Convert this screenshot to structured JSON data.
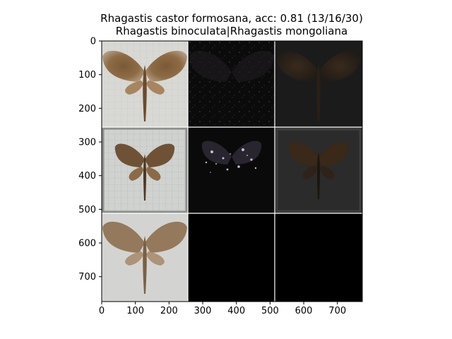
{
  "figure": {
    "title_line1": "Rhagastis castor formosana, acc: 0.81 (13/16/30)",
    "title_line2": "Rhagastis binoculata|Rhagastis mongoliana"
  },
  "axes": {
    "x_ticks": [
      "0",
      "100",
      "200",
      "300",
      "400",
      "500",
      "600",
      "700"
    ],
    "y_ticks": [
      "0",
      "100",
      "200",
      "300",
      "400",
      "500",
      "600",
      "700"
    ],
    "xlim": [
      0,
      774
    ],
    "ylim": [
      774,
      0
    ]
  },
  "grid": {
    "rows": 3,
    "cols": 3,
    "tiles": [
      [
        {
          "content": "moth specimen photo, pale background",
          "tone": "light"
        },
        {
          "content": "dark activation map",
          "tone": "dark"
        },
        {
          "content": "dark moth overlay",
          "tone": "dark"
        }
      ],
      [
        {
          "content": "moth specimen photo with grid backdrop",
          "tone": "light"
        },
        {
          "content": "sparse colored activation map",
          "tone": "dark"
        },
        {
          "content": "dark moth overlay",
          "tone": "dark"
        }
      ],
      [
        {
          "content": "blurred moth reconstruction",
          "tone": "light"
        },
        {
          "content": "black tile",
          "tone": "black"
        },
        {
          "content": "black tile",
          "tone": "black"
        }
      ]
    ]
  }
}
